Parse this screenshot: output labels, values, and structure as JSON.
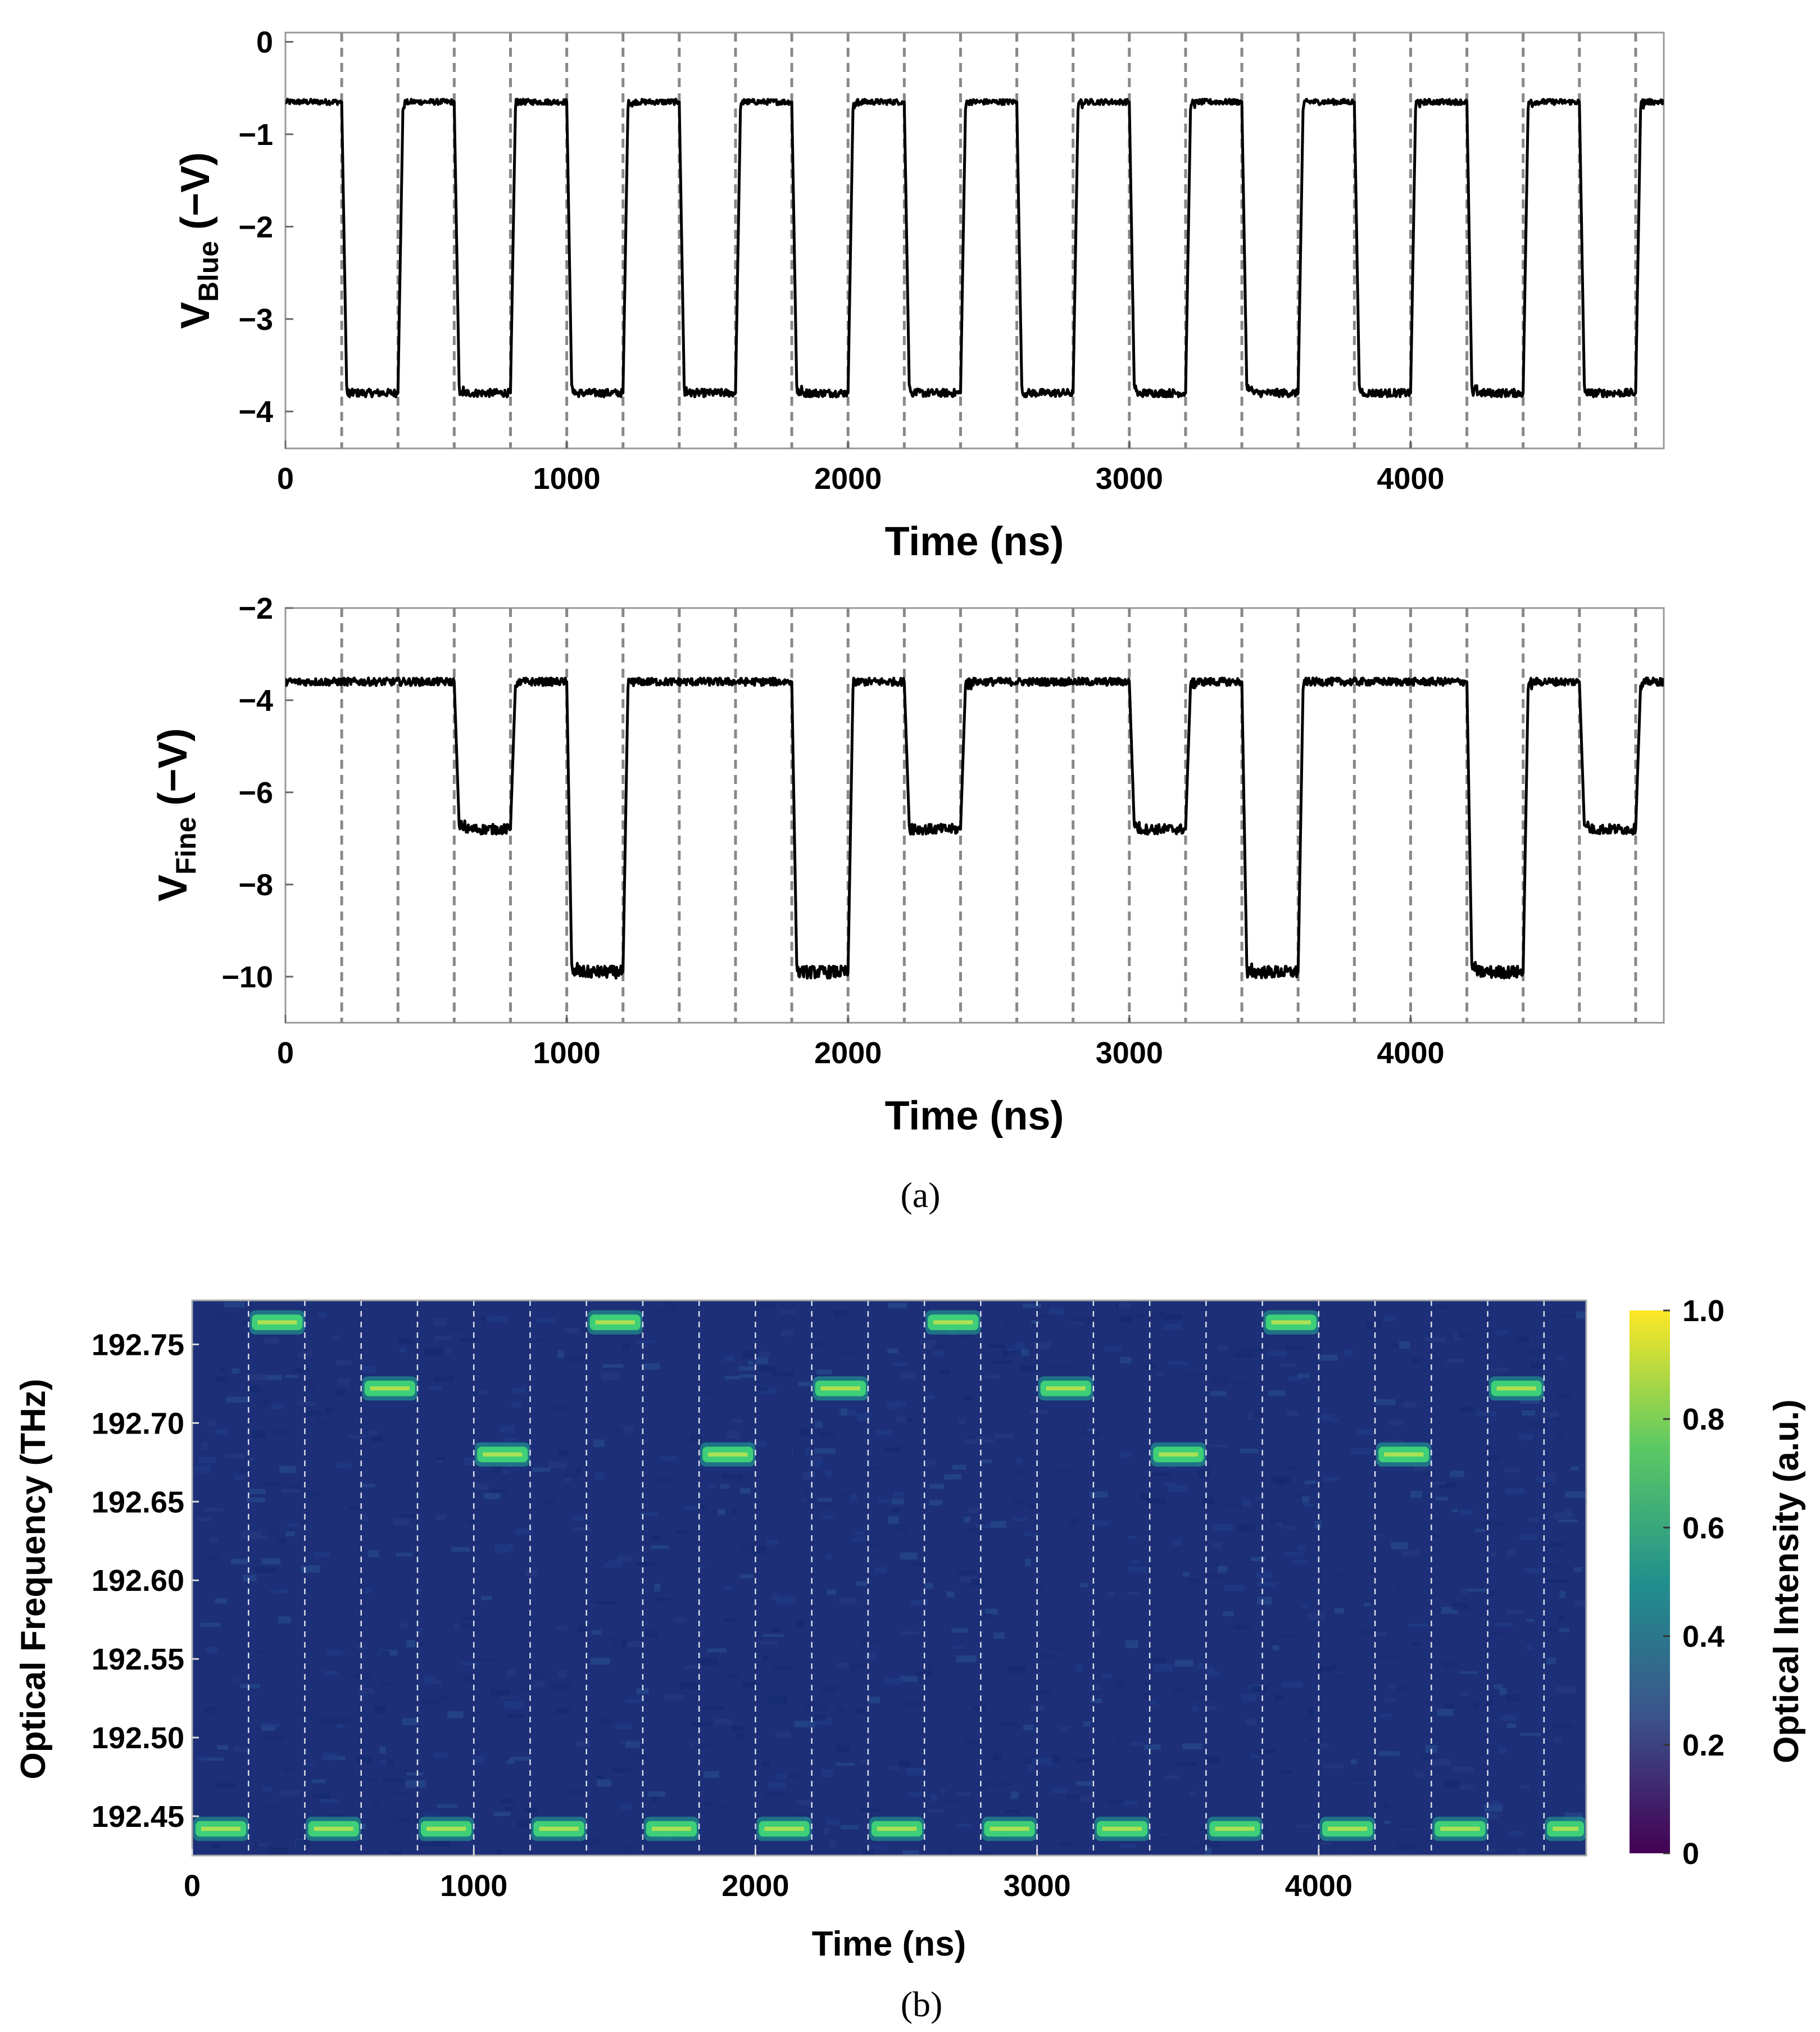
{
  "chart_data": [
    {
      "type": "line",
      "panel": "a-top",
      "xlabel": "Time (ns)",
      "ylabel": "V",
      "ylabel_sub": "Blue",
      "ylabel_unit": "(−V)",
      "xlim": [
        0,
        4900
      ],
      "ylim": [
        -4.4,
        0.1
      ],
      "xticks": [
        0,
        1000,
        2000,
        3000,
        4000
      ],
      "yticks": [
        0,
        -1,
        -2,
        -3,
        -4
      ],
      "xtick_labels": [
        "0",
        "1000",
        "2000",
        "3000",
        "4000"
      ],
      "ytick_labels": [
        "0",
        "−1",
        "−2",
        "−3",
        "−4"
      ],
      "gridlines_x": [
        200,
        400,
        600,
        800,
        1000,
        1200,
        1400,
        1600,
        1800,
        2000,
        2200,
        2400,
        2600,
        2800,
        3000,
        3200,
        3400,
        3600,
        3800,
        4000,
        4200,
        4400,
        4600,
        4800
      ],
      "segment_ns": 200,
      "levels": [
        -0.65,
        -3.8,
        -0.65,
        -3.8,
        -0.65,
        -3.8,
        -0.65,
        -3.8,
        -0.65,
        -3.8,
        -0.65,
        -3.8,
        -0.65,
        -3.8,
        -0.65,
        -3.8,
        -0.65,
        -3.8,
        -0.65,
        -3.8,
        -0.65,
        -3.8,
        -0.65,
        -3.8,
        -0.65
      ],
      "line_color": "#000000",
      "grid": "dashed vertical"
    },
    {
      "type": "line",
      "panel": "a-bottom",
      "xlabel": "Time (ns)",
      "ylabel": "V",
      "ylabel_sub": "Fine",
      "ylabel_unit": "(−V)",
      "xlim": [
        0,
        4900
      ],
      "ylim": [
        -11,
        -2
      ],
      "xticks": [
        0,
        1000,
        2000,
        3000,
        4000
      ],
      "yticks": [
        -2,
        -4,
        -6,
        -8,
        -10
      ],
      "xtick_labels": [
        "0",
        "1000",
        "2000",
        "3000",
        "4000"
      ],
      "ytick_labels": [
        "−2",
        "−4",
        "−6",
        "−8",
        "−10"
      ],
      "gridlines_x": [
        200,
        400,
        600,
        800,
        1000,
        1200,
        1400,
        1600,
        1800,
        2000,
        2200,
        2400,
        2600,
        2800,
        3000,
        3200,
        3400,
        3600,
        3800,
        4000,
        4200,
        4400,
        4600,
        4800
      ],
      "segment_ns": 200,
      "levels": [
        -3.6,
        -3.6,
        -3.6,
        -6.8,
        -3.6,
        -9.9,
        -3.6,
        -3.6,
        -3.6,
        -9.9,
        -3.6,
        -6.8,
        -3.6,
        -3.6,
        -3.6,
        -6.8,
        -3.6,
        -9.9,
        -3.6,
        -3.6,
        -3.6,
        -9.9,
        -3.6,
        -6.8,
        -3.6
      ],
      "line_color": "#000000",
      "grid": "dashed vertical"
    },
    {
      "type": "heatmap",
      "panel": "b",
      "xlabel": "Time (ns)",
      "ylabel": "Optical Frequency (THz)",
      "colorbar_label": "Optical Intensity (a.u.)",
      "xlim": [
        0,
        4950
      ],
      "ylim": [
        192.425,
        192.778
      ],
      "xticks": [
        0,
        1000,
        2000,
        3000,
        4000
      ],
      "yticks": [
        192.45,
        192.5,
        192.55,
        192.6,
        192.65,
        192.7,
        192.75
      ],
      "xtick_labels": [
        "0",
        "1000",
        "2000",
        "3000",
        "4000"
      ],
      "ytick_labels": [
        "192.45",
        "192.50",
        "192.55",
        "192.60",
        "192.65",
        "192.70",
        "192.75"
      ],
      "colorbar_ticks": [
        0,
        0.2,
        0.4,
        0.6,
        0.8,
        1.0
      ],
      "colorbar_tick_labels": [
        "0",
        "0.2",
        "0.4",
        "0.6",
        "0.8",
        "1.0"
      ],
      "gridlines_x": [
        200,
        400,
        600,
        800,
        1000,
        1200,
        1400,
        1600,
        1800,
        2000,
        2200,
        2400,
        2600,
        2800,
        3000,
        3200,
        3400,
        3600,
        3800,
        4000,
        4200,
        4400,
        4600,
        4800
      ],
      "segment_ns": 200,
      "tone_frequencies": [
        192.442,
        192.764,
        192.442,
        192.722,
        192.442,
        192.68,
        192.442,
        192.764,
        192.442,
        192.68,
        192.442,
        192.722,
        192.442,
        192.764,
        192.442,
        192.722,
        192.442,
        192.68,
        192.442,
        192.764,
        192.442,
        192.68,
        192.442,
        192.722,
        192.442
      ],
      "tone_intensity": 0.8,
      "colormap": [
        "#440154",
        "#3b528b",
        "#21908d",
        "#5dc963",
        "#fde725"
      ],
      "background_color": "#1c2f78"
    }
  ],
  "captions": {
    "a": "(a)",
    "b": "(b)"
  }
}
